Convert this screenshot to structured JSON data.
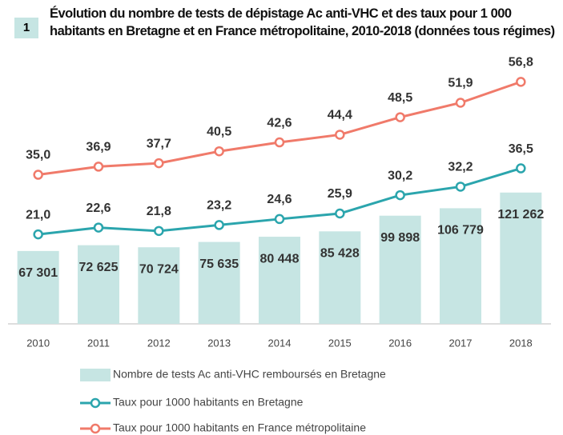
{
  "chart_data": {
    "type": "bar",
    "badge": "1",
    "title": "Évolution du nombre de tests de dépistage Ac anti-VHC et des taux pour 1 000 habitants en Bretagne et en France métropolitaine, 2010-2018 (données tous régimes)",
    "categories": [
      "2010",
      "2011",
      "2012",
      "2013",
      "2014",
      "2015",
      "2016",
      "2017",
      "2018"
    ],
    "ylim": [
      0,
      240000
    ],
    "y2lim": [
      0,
      61
    ],
    "series": [
      {
        "name": "Nombre de tests  Ac anti-VHC remboursés en Bretagne",
        "type": "bar",
        "color": "#c6e5e3",
        "values": [
          67301,
          72625,
          70724,
          75635,
          80448,
          85428,
          99898,
          106779,
          121262
        ],
        "value_labels": [
          "67 301",
          "72 625",
          "70 724",
          "75 635",
          "80 448",
          "85 428",
          "99 898",
          "106 779",
          "121 262"
        ]
      },
      {
        "name": "Taux pour 1000 habitants en Bretagne",
        "type": "line",
        "axis": "y2",
        "color": "#2ba5ad",
        "values": [
          21.0,
          22.6,
          21.8,
          23.2,
          24.6,
          25.9,
          30.2,
          32.2,
          36.5
        ],
        "value_labels": [
          "21,0",
          "22,6",
          "21,8",
          "23,2",
          "24,6",
          "25,9",
          "30,2",
          "32,2",
          "36,5"
        ]
      },
      {
        "name": "Taux pour 1000 habitants en France métropolitaine",
        "type": "line",
        "axis": "y2",
        "color": "#f07a6a",
        "values": [
          35.0,
          36.9,
          37.7,
          40.5,
          42.6,
          44.4,
          48.5,
          51.9,
          56.8
        ],
        "value_labels": [
          "35,0",
          "36,9",
          "37,7",
          "40,5",
          "42,6",
          "44,4",
          "48,5",
          "51,9",
          "56,8"
        ]
      }
    ]
  }
}
